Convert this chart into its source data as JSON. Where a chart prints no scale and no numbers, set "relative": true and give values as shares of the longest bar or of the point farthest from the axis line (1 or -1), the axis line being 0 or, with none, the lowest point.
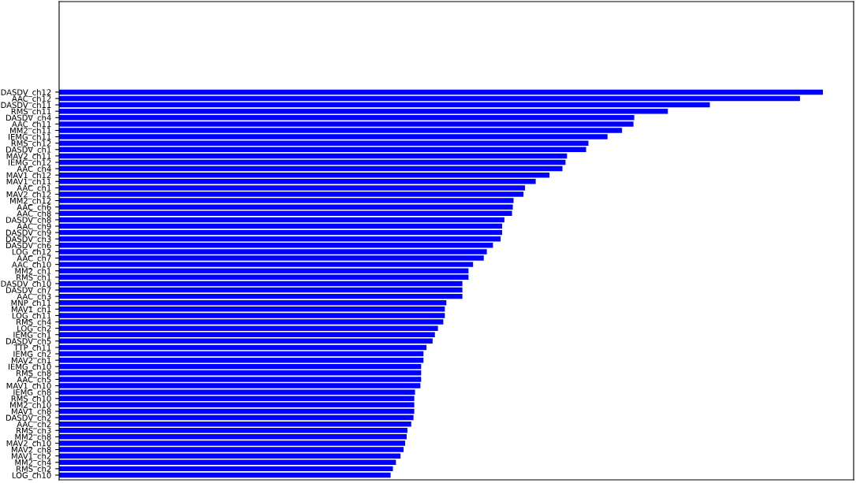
{
  "chart_data": {
    "type": "bar",
    "orientation": "horizontal",
    "relative": true,
    "color": "#0000ff",
    "categories": [
      "DASDV_ch12",
      "AAC_ch12",
      "DASDV_ch11",
      "RMS_ch11",
      "DASDV_ch4",
      "AAC_ch11",
      "MM2_ch11",
      "IEMG_ch11",
      "RMS_ch12",
      "DASDV_ch1",
      "MAV2_ch11",
      "IEMG_ch12",
      "AAC_ch4",
      "MAV1_ch12",
      "MAV1_ch11",
      "AAC_ch1",
      "MAV2_ch12",
      "MM2_ch12",
      "AAC_ch6",
      "AAC_ch8",
      "DASDV_ch8",
      "AAC_ch9",
      "DASDV_ch9",
      "DASDV_ch3",
      "DASDV_ch6",
      "LOG_ch12",
      "AAC_ch7",
      "AAC_ch10",
      "MM2_ch1",
      "RMS_ch1",
      "DASDV_ch10",
      "DASDV_ch7",
      "AAC_ch3",
      "MNP_ch11",
      "MAV1_ch1",
      "LOG_ch11",
      "RMS_ch4",
      "LOG_ch2",
      "IEMG_ch1",
      "DASDV_ch5",
      "TTP_ch11",
      "IEMG_ch2",
      "MAV2_ch1",
      "IEMG_ch10",
      "RMS_ch8",
      "AAC_ch5",
      "MAV1_ch10",
      "IEMG_ch8",
      "RMS_ch10",
      "MM2_ch10",
      "MAV1_ch8",
      "DASDV_ch2",
      "AAC_ch2",
      "RMS_ch3",
      "MM2_ch8",
      "MAV2_ch10",
      "MAV2_ch8",
      "MAV1_ch2",
      "MM2_ch4",
      "RMS_ch2",
      "LOG_ch10"
    ],
    "values": [
      1.0,
      0.97,
      0.852,
      0.797,
      0.753,
      0.752,
      0.737,
      0.718,
      0.693,
      0.69,
      0.665,
      0.663,
      0.659,
      0.642,
      0.624,
      0.61,
      0.608,
      0.595,
      0.594,
      0.593,
      0.583,
      0.58,
      0.58,
      0.578,
      0.568,
      0.56,
      0.556,
      0.542,
      0.536,
      0.536,
      0.528,
      0.528,
      0.528,
      0.507,
      0.505,
      0.505,
      0.503,
      0.496,
      0.492,
      0.489,
      0.481,
      0.477,
      0.477,
      0.474,
      0.474,
      0.474,
      0.473,
      0.466,
      0.465,
      0.465,
      0.465,
      0.464,
      0.461,
      0.456,
      0.455,
      0.453,
      0.451,
      0.447,
      0.441,
      0.437,
      0.434
    ]
  }
}
